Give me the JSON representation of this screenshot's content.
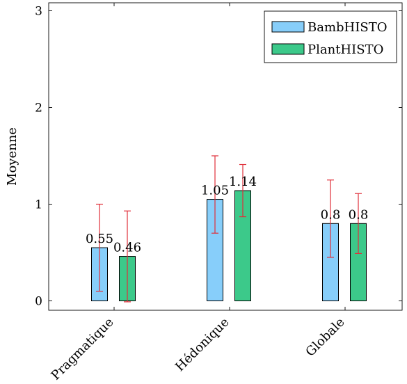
{
  "chart_data": {
    "type": "bar",
    "categories": [
      "Pragmatique",
      "Hédonique",
      "Globale"
    ],
    "series": [
      {
        "name": "BambHISTO",
        "color": "#87cefa",
        "values": [
          0.55,
          1.05,
          0.8
        ],
        "labels": [
          "0.55",
          "1.05",
          "0.8"
        ],
        "err_low": [
          0.1,
          0.7,
          0.45
        ],
        "err_high": [
          1.0,
          1.5,
          1.25
        ]
      },
      {
        "name": "PlantHISTO",
        "color": "#3cc98a",
        "values": [
          0.46,
          1.14,
          0.8
        ],
        "labels": [
          "0.46",
          "1.14",
          "0.8"
        ],
        "err_low": [
          -0.01,
          0.87,
          0.49
        ],
        "err_high": [
          0.93,
          1.41,
          1.11
        ]
      }
    ],
    "ylabel": "Moyenne",
    "xlabel": "",
    "ylim": [
      -0.1,
      3
    ],
    "yticks": [
      "0",
      "1",
      "2",
      "3"
    ],
    "error_bar_color": "#e0303a",
    "legend_position": "top-right",
    "grid": false
  }
}
